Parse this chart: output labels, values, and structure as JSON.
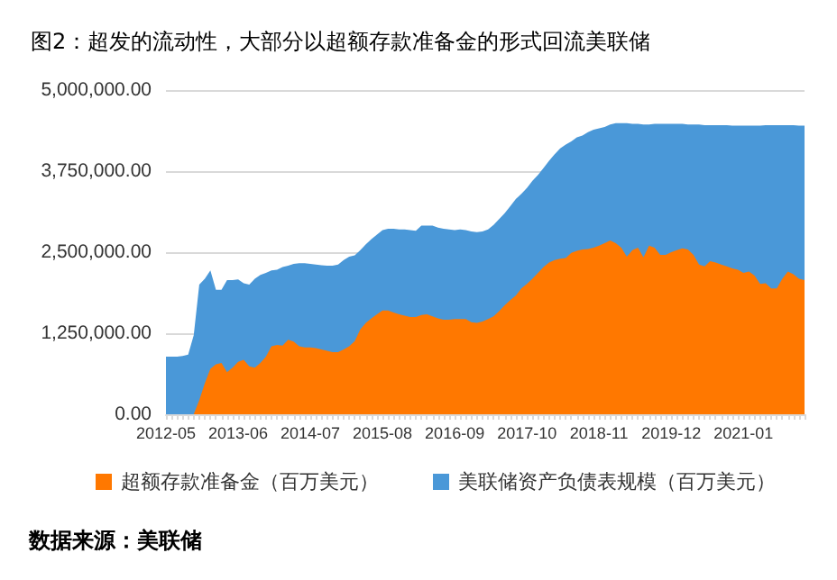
{
  "chart_data": {
    "type": "area",
    "title": "图2：超发的流动性，大部分以超额存款准备金的形式回流美联储",
    "categories": [
      "2012-05",
      null,
      null,
      null,
      null,
      null,
      null,
      null,
      null,
      null,
      null,
      null,
      null,
      "2013-06",
      null,
      null,
      null,
      null,
      null,
      null,
      null,
      null,
      null,
      null,
      null,
      null,
      "2014-07",
      null,
      null,
      null,
      null,
      null,
      null,
      null,
      null,
      null,
      null,
      null,
      null,
      "2015-08",
      null,
      null,
      null,
      null,
      null,
      null,
      null,
      null,
      null,
      null,
      null,
      null,
      "2016-09",
      null,
      null,
      null,
      null,
      null,
      null,
      null,
      null,
      null,
      null,
      null,
      null,
      "2017-10",
      null,
      null,
      null,
      null,
      null,
      null,
      null,
      null,
      null,
      null,
      null,
      null,
      "2018-11",
      null,
      null,
      null,
      null,
      null,
      null,
      null,
      null,
      null,
      null,
      null,
      null,
      "2019-12",
      null,
      null,
      null,
      null,
      null,
      null,
      null,
      null,
      null,
      null,
      null,
      null,
      "2021-01",
      null,
      null,
      null,
      null,
      null,
      null,
      null,
      null,
      null,
      null,
      null
    ],
    "series": [
      {
        "name": "美联储资产负债表规模（百万美元）",
        "color": "#4a98d8",
        "values": [
          890000,
          890000,
          890000,
          900000,
          920000,
          1220000,
          2000000,
          2090000,
          2220000,
          1920000,
          1920000,
          2070000,
          2070000,
          2080000,
          2020000,
          2000000,
          2090000,
          2150000,
          2180000,
          2220000,
          2230000,
          2270000,
          2290000,
          2320000,
          2330000,
          2330000,
          2320000,
          2310000,
          2300000,
          2290000,
          2290000,
          2310000,
          2380000,
          2430000,
          2450000,
          2530000,
          2620000,
          2700000,
          2770000,
          2840000,
          2860000,
          2860000,
          2850000,
          2850000,
          2840000,
          2830000,
          2910000,
          2910000,
          2910000,
          2880000,
          2860000,
          2850000,
          2840000,
          2850000,
          2840000,
          2820000,
          2810000,
          2820000,
          2850000,
          2920000,
          3010000,
          3100000,
          3210000,
          3320000,
          3400000,
          3490000,
          3600000,
          3690000,
          3800000,
          3910000,
          4010000,
          4100000,
          4160000,
          4210000,
          4270000,
          4300000,
          4350000,
          4390000,
          4410000,
          4430000,
          4470000,
          4490000,
          4490000,
          4490000,
          4480000,
          4480000,
          4470000,
          4470000,
          4480000,
          4480000,
          4480000,
          4480000,
          4480000,
          4480000,
          4470000,
          4470000,
          4470000,
          4460000,
          4460000,
          4460000,
          4460000,
          4460000,
          4450000,
          4450000,
          4450000,
          4450000,
          4450000,
          4450000,
          4460000,
          4460000,
          4460000,
          4460000,
          4460000,
          4460000,
          4450000,
          4450000
        ]
      },
      {
        "name": "超额存款准备金（百万美元）",
        "color": "#ff7800",
        "values": [
          0,
          0,
          0,
          0,
          0,
          0,
          220000,
          480000,
          700000,
          770000,
          790000,
          650000,
          720000,
          810000,
          840000,
          740000,
          720000,
          790000,
          890000,
          1050000,
          1070000,
          1060000,
          1150000,
          1120000,
          1050000,
          1030000,
          1030000,
          1020000,
          1000000,
          980000,
          960000,
          960000,
          1000000,
          1050000,
          1130000,
          1310000,
          1410000,
          1480000,
          1540000,
          1600000,
          1600000,
          1570000,
          1540000,
          1520000,
          1500000,
          1500000,
          1530000,
          1540000,
          1510000,
          1480000,
          1460000,
          1460000,
          1470000,
          1470000,
          1470000,
          1420000,
          1410000,
          1430000,
          1470000,
          1510000,
          1590000,
          1680000,
          1760000,
          1830000,
          1940000,
          2010000,
          2090000,
          2180000,
          2270000,
          2340000,
          2380000,
          2400000,
          2410000,
          2490000,
          2520000,
          2540000,
          2550000,
          2570000,
          2600000,
          2640000,
          2680000,
          2640000,
          2570000,
          2430000,
          2530000,
          2570000,
          2420000,
          2600000,
          2570000,
          2460000,
          2460000,
          2500000,
          2530000,
          2560000,
          2540000,
          2460000,
          2310000,
          2280000,
          2360000,
          2340000,
          2310000,
          2280000,
          2250000,
          2230000,
          2180000,
          2200000,
          2140000,
          2010000,
          2020000,
          1940000,
          1940000,
          2090000,
          2200000,
          2160000,
          2090000,
          2070000
        ]
      }
    ],
    "ylim": [
      0,
      5000000
    ],
    "yticks": [
      {
        "value": 0,
        "label": "0.00"
      },
      {
        "value": 1250000,
        "label": "1,250,000.00"
      },
      {
        "value": 2500000,
        "label": "2,500,000.00"
      },
      {
        "value": 3750000,
        "label": "3,750,000.00"
      },
      {
        "value": 5000000,
        "label": "5,000,000.00"
      }
    ],
    "grid": "y",
    "legend": "bottom",
    "annotations": [
      "数据来源：美联储"
    ]
  }
}
